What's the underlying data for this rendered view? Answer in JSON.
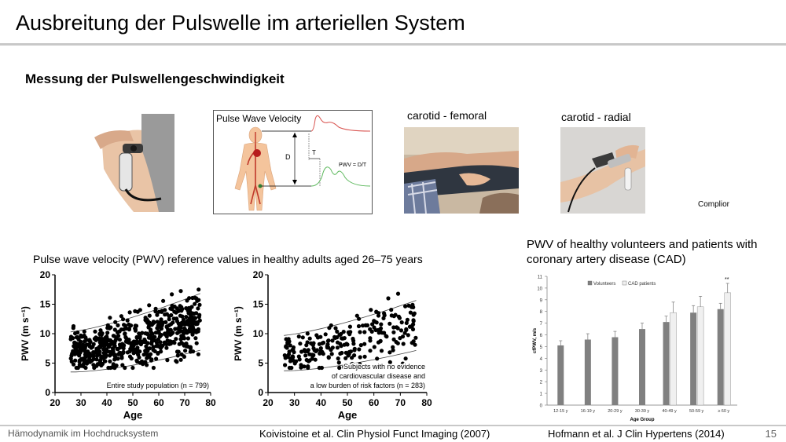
{
  "slide": {
    "title": "Ausbreitung der Pulswelle im arteriellen System",
    "subtitle": "Messung der Pulswellengeschwindigkeit",
    "footer": "Hämodynamik im Hochdrucksystem",
    "page_number": "15"
  },
  "pwv_diagram": {
    "title": "Pulse Wave Velocity",
    "label_d": "D",
    "label_t": "T",
    "formula": "PWV = D/T"
  },
  "photos": {
    "carotid_femoral_label": "carotid - femoral",
    "carotid_radial_label": "carotid - radial",
    "device_label": "Complior"
  },
  "koivistoine": {
    "caption": "Pulse wave velocity (PWV) reference values in healthy adults aged 26–75 years",
    "citation": "Koivistoine et al. Clin Physiol Funct Imaging (2007)"
  },
  "hofmann": {
    "caption_line1": "PWV of healthy volunteers and patients with",
    "caption_line2": "coronary artery disease (CAD)",
    "citation": "Hofmann et al. J Clin Hypertens (2014)"
  },
  "chart_data": [
    {
      "type": "scatter",
      "xlabel": "Age",
      "ylabel": "PWV (m s⁻¹)",
      "xlim": [
        20,
        80
      ],
      "ylim": [
        0,
        20
      ],
      "xticks": [
        20,
        30,
        40,
        50,
        60,
        70,
        80
      ],
      "yticks": [
        0,
        5,
        10,
        15,
        20
      ],
      "annotation": [
        "Entire study population (n = 799)"
      ],
      "point_count": 600,
      "trend": {
        "center_at_26": 6.9,
        "center_at_76": 12.0,
        "band": 3.4
      }
    },
    {
      "type": "scatter",
      "xlabel": "Age",
      "ylabel": "PWV (m s⁻¹)",
      "xlim": [
        20,
        80
      ],
      "ylim": [
        0,
        20
      ],
      "xticks": [
        20,
        30,
        40,
        50,
        60,
        70,
        80
      ],
      "yticks": [
        0,
        5,
        10,
        15,
        20
      ],
      "annotation": [
        "Subjects with no evidence",
        "of cardiovascular disease and",
        "a low burden of risk factors (n = 283)"
      ],
      "point_count": 240,
      "trend": {
        "center_at_26": 6.7,
        "center_at_76": 11.4,
        "band": 3.0
      }
    },
    {
      "type": "bar",
      "xlabel": "Age Group",
      "ylabel": "cfPWV, m/s",
      "ylim": [
        0,
        11
      ],
      "yticks": [
        0,
        1,
        2,
        3,
        4,
        5,
        6,
        7,
        8,
        9,
        10,
        11
      ],
      "categories": [
        "12-15 y",
        "16-19 y",
        "20-29 y",
        "30-39 y",
        "40-49 y",
        "50-59 y",
        "≥ 60 y"
      ],
      "series": [
        {
          "name": "Volunteers",
          "values": [
            5.1,
            5.6,
            5.8,
            6.5,
            7.1,
            7.9,
            8.2
          ],
          "errors": [
            0.4,
            0.5,
            0.5,
            0.5,
            0.5,
            0.6,
            0.5
          ],
          "color": "#808080"
        },
        {
          "name": "CAD patients",
          "values": [
            null,
            null,
            null,
            null,
            7.9,
            8.4,
            9.6
          ],
          "errors": [
            null,
            null,
            null,
            null,
            0.9,
            0.9,
            0.8
          ],
          "color": "#f0f0f0"
        }
      ],
      "significance": [
        {
          "category": "≥ 60 y",
          "label": "**"
        }
      ]
    }
  ]
}
